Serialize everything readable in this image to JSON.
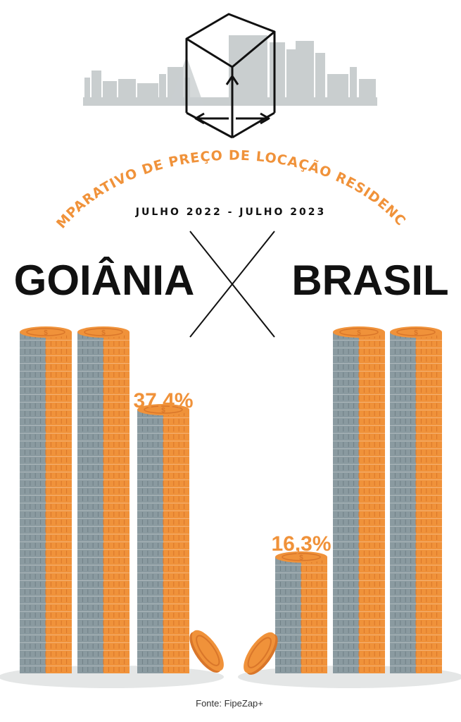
{
  "header": {
    "arc_title": "COMPARATIVO DE PREÇO DE LOCAÇÃO RESIDENCIAL",
    "period": "JULHO 2022 - JULHO 2023",
    "left_title": "GOIÂNIA",
    "right_title": "BRASIL"
  },
  "colors": {
    "orange": "#f0923a",
    "orange_dark": "#d9762a",
    "grey": "#8a9aa0",
    "grey_dark": "#6f7f86",
    "skyline": "#c9cecf",
    "shadow": "#e4e6e6",
    "text": "#111111"
  },
  "icons": [
    "skyline-icon",
    "cube-arrows-icon",
    "coin-stack-icon",
    "falling-coin-icon"
  ],
  "chart_data": {
    "type": "bar",
    "title": "COMPARATIVO DE PREÇO DE LOCAÇÃO RESIDENCIAL",
    "subtitle": "JULHO 2022 - JULHO 2023",
    "categories": [
      "GOIÂNIA",
      "BRASIL"
    ],
    "values": [
      37.4,
      16.3
    ],
    "value_labels": [
      "37,4%",
      "16,3%"
    ],
    "unit": "%"
  },
  "source": "Fonte: FipeZap+"
}
